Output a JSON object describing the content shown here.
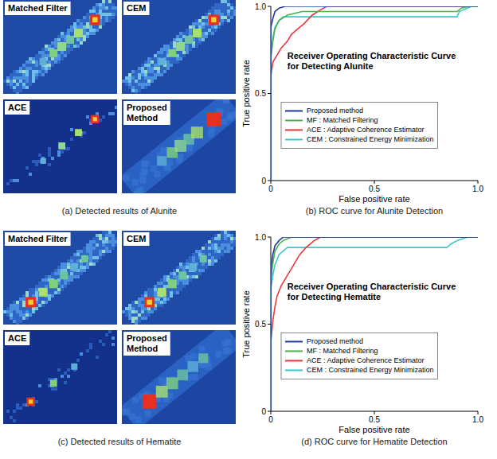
{
  "image_panels": [
    {
      "caption": "(a) Detected results of Alunite",
      "tiles": [
        "Matched Filter",
        "CEM",
        "ACE",
        "Proposed Method"
      ]
    },
    {
      "caption": "(c) Detected results of Hematite",
      "tiles": [
        "Matched Filter",
        "CEM",
        "ACE",
        "Proposed Method"
      ]
    }
  ],
  "chart_data": [
    {
      "type": "line",
      "title": "Receiver Operating Characteristic Curve for Detecting Alunite",
      "caption": "(b) ROC curve for Alunite Detection",
      "x_label": "False positive rate",
      "y_label": "True positive rate",
      "xlim": [
        0,
        1
      ],
      "ylim": [
        0,
        1
      ],
      "xticks": [
        0,
        0.5,
        {
          "value": 1,
          "label": "1.0"
        }
      ],
      "yticks": [
        0,
        0.5,
        {
          "value": 1,
          "label": "1.0"
        }
      ],
      "grid": false,
      "legend": "center",
      "series": [
        {
          "name": "Proposed method",
          "color": "#1f3c9c",
          "x": [
            0,
            0,
            0.01,
            0.02,
            0.04,
            0.07,
            1
          ],
          "values": [
            0,
            0.88,
            0.93,
            0.97,
            0.99,
            1,
            1
          ]
        },
        {
          "name": "MF : Matched Filtering",
          "color": "#4cae4c",
          "x": [
            0,
            0,
            0.01,
            0.02,
            0.04,
            0.08,
            0.15,
            0.9,
            0.92,
            0.96,
            1
          ],
          "values": [
            0,
            0.7,
            0.8,
            0.87,
            0.92,
            0.95,
            0.97,
            0.97,
            0.99,
            1,
            1
          ]
        },
        {
          "name": "ACE : Adaptive Coherence Estimator",
          "color": "#e8383d",
          "x": [
            0,
            0,
            0.01,
            0.03,
            0.05,
            0.08,
            0.1,
            0.13,
            0.16,
            0.2,
            0.24,
            0.27,
            1
          ],
          "values": [
            0,
            0.6,
            0.68,
            0.72,
            0.76,
            0.8,
            0.84,
            0.87,
            0.9,
            0.95,
            0.98,
            1,
            1
          ]
        },
        {
          "name": "CEM : Constrained Energy Minimization",
          "color": "#3cc8c8",
          "x": [
            0,
            0,
            0.01,
            0.02,
            0.04,
            0.06,
            0.9,
            0.91,
            0.95,
            0.97,
            1
          ],
          "values": [
            0,
            0.72,
            0.82,
            0.88,
            0.92,
            0.94,
            0.94,
            0.97,
            0.99,
            1,
            1
          ]
        }
      ]
    },
    {
      "type": "line",
      "title": "Receiver Operating Characteristic Curve for Detecting Hematite",
      "caption": "(d) ROC curve for Hematite Detection",
      "x_label": "False positive rate",
      "y_label": "True positive rate",
      "xlim": [
        0,
        1
      ],
      "ylim": [
        0,
        1
      ],
      "xticks": [
        0,
        0.5,
        {
          "value": 1,
          "label": "1.0"
        }
      ],
      "yticks": [
        0,
        0.5,
        {
          "value": 1,
          "label": "1.0"
        }
      ],
      "grid": false,
      "legend": "center",
      "series": [
        {
          "name": "Proposed method",
          "color": "#1f3c9c",
          "x": [
            0,
            0,
            0.01,
            0.02,
            0.04,
            0.06,
            1
          ],
          "values": [
            0,
            0.82,
            0.9,
            0.95,
            0.98,
            1,
            1
          ]
        },
        {
          "name": "MF : Matched Filtering",
          "color": "#4cae4c",
          "x": [
            0,
            0,
            0.01,
            0.02,
            0.04,
            0.06,
            0.1,
            1
          ],
          "values": [
            0,
            0.75,
            0.85,
            0.92,
            0.96,
            0.98,
            1,
            1
          ]
        },
        {
          "name": "ACE : Adaptive Coherence Estimator",
          "color": "#e8383d",
          "x": [
            0,
            0,
            0.01,
            0.02,
            0.03,
            0.05,
            0.08,
            0.11,
            0.14,
            0.17,
            0.21,
            0.24,
            1
          ],
          "values": [
            0,
            0.4,
            0.52,
            0.6,
            0.66,
            0.72,
            0.78,
            0.84,
            0.9,
            0.94,
            0.98,
            1,
            1
          ]
        },
        {
          "name": "CEM : Constrained Energy Minimization",
          "color": "#3cc8c8",
          "x": [
            0,
            0,
            0.01,
            0.02,
            0.04,
            0.07,
            0.08,
            0.85,
            0.87,
            0.9,
            0.95,
            1
          ],
          "values": [
            0,
            0.7,
            0.78,
            0.84,
            0.9,
            0.93,
            0.94,
            0.94,
            0.96,
            0.98,
            1,
            1
          ]
        }
      ]
    }
  ]
}
